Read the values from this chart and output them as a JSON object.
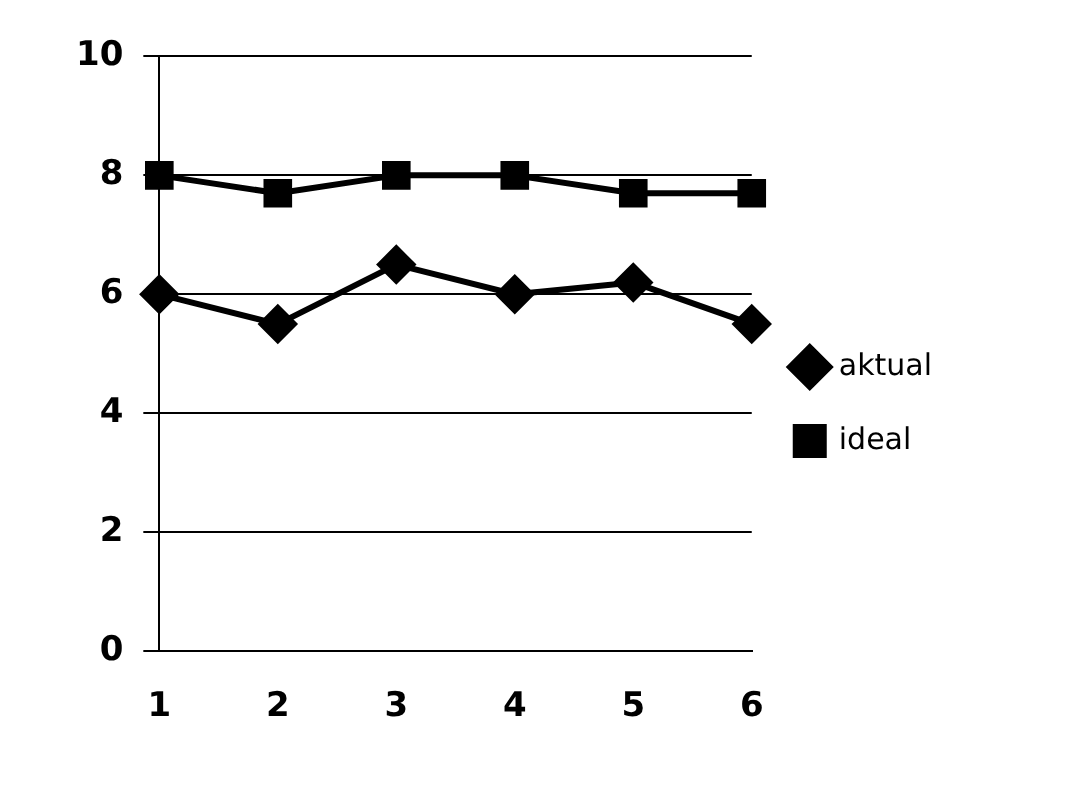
{
  "chart_data": {
    "type": "line",
    "categories": [
      "1",
      "2",
      "3",
      "4",
      "5",
      "6"
    ],
    "series": [
      {
        "name": "aktual",
        "color": "#000000",
        "marker": "diamond",
        "values": [
          6.0,
          5.5,
          6.5,
          6.0,
          6.2,
          5.5
        ]
      },
      {
        "name": "ideal",
        "color": "#000000",
        "marker": "square",
        "values": [
          8.0,
          7.7,
          8.0,
          8.0,
          7.7,
          7.7
        ]
      }
    ],
    "ylim": [
      0,
      10
    ],
    "yticks": [
      0,
      2,
      4,
      6,
      8,
      10
    ],
    "grid": "y",
    "legend": "right",
    "line_style": "solid"
  }
}
